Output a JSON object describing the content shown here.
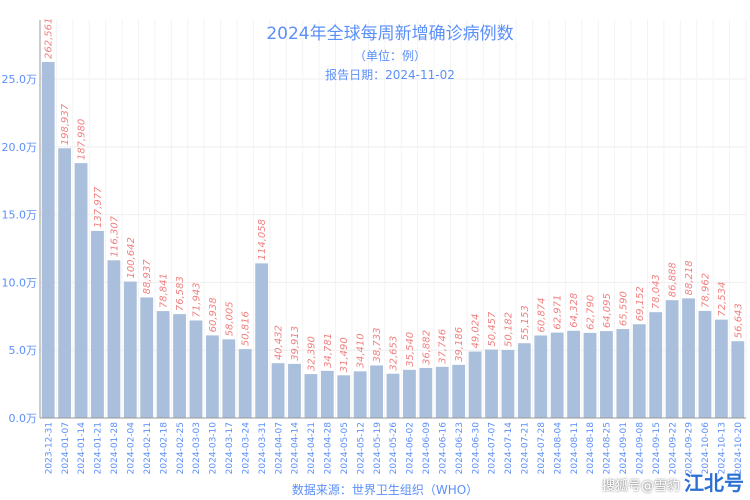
{
  "chart_data": {
    "type": "bar",
    "title": "2024年全球每周新增确诊病例数",
    "subtitle": "（单位：例）",
    "report_date": "报告日期：2024-11-02",
    "source": "数据来源：世界卫生组织（WHO）",
    "ylim": [
      0,
      270000
    ],
    "yticks": [
      0,
      50000,
      100000,
      150000,
      200000,
      250000
    ],
    "ytick_labels": [
      "0.0万",
      "5.0万",
      "10.0万",
      "15.0万",
      "20.0万",
      "25.0万"
    ],
    "grid": true,
    "bar_color": "#a9bfdc",
    "label_color": "#f08080",
    "title_color": "#5b8ff9",
    "categories": [
      "2023-12-31",
      "2024-01-07",
      "2024-01-14",
      "2024-01-21",
      "2024-01-28",
      "2024-02-04",
      "2024-02-11",
      "2024-02-18",
      "2024-02-25",
      "2024-03-03",
      "2024-03-10",
      "2024-03-17",
      "2024-03-24",
      "2024-03-31",
      "2024-04-07",
      "2024-04-14",
      "2024-04-21",
      "2024-04-28",
      "2024-05-05",
      "2024-05-12",
      "2024-05-19",
      "2024-05-26",
      "2024-06-02",
      "2024-06-09",
      "2024-06-16",
      "2024-06-23",
      "2024-06-30",
      "2024-07-07",
      "2024-07-14",
      "2024-07-21",
      "2024-07-28",
      "2024-08-04",
      "2024-08-11",
      "2024-08-18",
      "2024-08-25",
      "2024-09-01",
      "2024-09-08",
      "2024-09-15",
      "2024-09-22",
      "2024-09-29",
      "2024-10-06",
      "2024-10-13",
      "2024-10-20"
    ],
    "values": [
      262561,
      198937,
      187980,
      137977,
      116307,
      100642,
      88937,
      78841,
      76583,
      71943,
      60938,
      58005,
      50816,
      114058,
      40432,
      39913,
      32390,
      34781,
      31490,
      34410,
      38733,
      32653,
      35540,
      36882,
      37746,
      39186,
      49024,
      50457,
      50182,
      55153,
      60874,
      62971,
      64328,
      62790,
      64095,
      65590,
      69152,
      78043,
      86888,
      88218,
      78962,
      72534,
      56643
    ]
  },
  "watermark": {
    "text": "搜狐号@雪豹",
    "brand": "江北号"
  }
}
